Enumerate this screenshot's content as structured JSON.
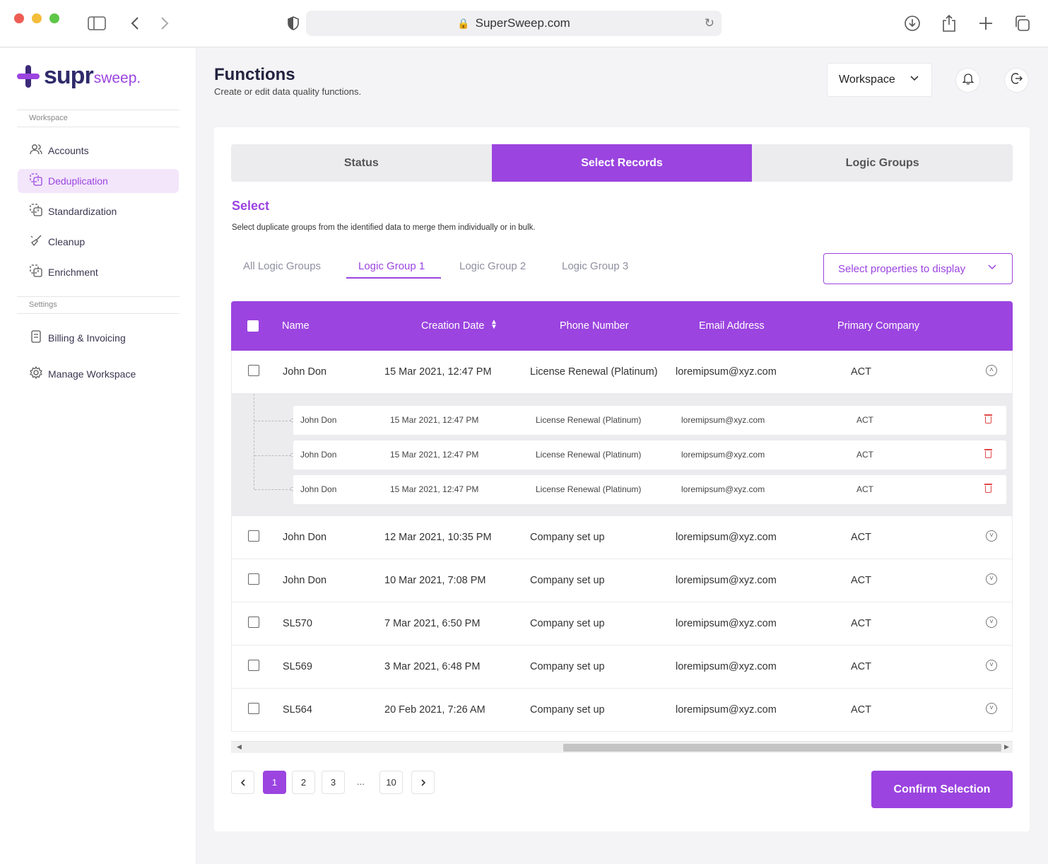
{
  "browser": {
    "url": "SuperSweep.com"
  },
  "brand": {
    "logo_main": "supr",
    "logo_accent": "sweep.",
    "accent_color": "#9b44e0"
  },
  "sidebar": {
    "section_workspace": "Workspace",
    "section_settings": "Settings",
    "items": [
      {
        "label": "Accounts",
        "icon": "users-icon"
      },
      {
        "label": "Deduplication",
        "icon": "duplicate-icon",
        "active": true
      },
      {
        "label": "Standardization",
        "icon": "standardize-icon"
      },
      {
        "label": "Cleanup",
        "icon": "broom-icon"
      },
      {
        "label": "Enrichment",
        "icon": "enrich-icon"
      }
    ],
    "settings_items": [
      {
        "label": "Billing & Invoicing",
        "icon": "invoice-icon"
      },
      {
        "label": "Manage Workspace",
        "icon": "gear-icon"
      }
    ]
  },
  "header": {
    "title": "Functions",
    "subtitle": "Create or edit data quality functions.",
    "workspace_select": "Workspace"
  },
  "tabs": [
    "Status",
    "Select Records",
    "Logic Groups"
  ],
  "select_section": {
    "title": "Select",
    "description": "Select duplicate groups from the identified data to merge them individually or in bulk."
  },
  "subtabs": [
    "All Logic Groups",
    "Logic Group 1",
    "Logic Group 2",
    "Logic Group 3"
  ],
  "props_button": "Select properties to display",
  "table": {
    "columns": [
      "Name",
      "Creation Date",
      "Phone Number",
      "Email Address",
      "Primary Company"
    ],
    "rows": [
      {
        "name": "John Don",
        "date": "15 Mar 2021, 12:47 PM",
        "phone": "License Renewal (Platinum)",
        "email": "loremipsum@xyz.com",
        "company": "ACT"
      },
      {
        "name": "John Don",
        "date": "12 Mar 2021, 10:35 PM",
        "phone": "Company set up",
        "email": "loremipsum@xyz.com",
        "company": "ACT"
      },
      {
        "name": "John Don",
        "date": "10 Mar 2021, 7:08 PM",
        "phone": "Company set up",
        "email": "loremipsum@xyz.com",
        "company": "ACT"
      },
      {
        "name": "SL570",
        "date": "7 Mar 2021, 6:50 PM",
        "phone": "Company set up",
        "email": "loremipsum@xyz.com",
        "company": "ACT"
      },
      {
        "name": "SL569",
        "date": "3 Mar 2021, 6:48 PM",
        "phone": "Company set up",
        "email": "loremipsum@xyz.com",
        "company": "ACT"
      },
      {
        "name": "SL564",
        "date": "20 Feb 2021, 7:26 AM",
        "phone": "Company set up",
        "email": "loremipsum@xyz.com",
        "company": "ACT"
      }
    ],
    "subrows": [
      {
        "name": "John Don",
        "date": "15 Mar 2021, 12:47 PM",
        "phone": "License Renewal (Platinum)",
        "email": "loremipsum@xyz.com",
        "company": "ACT"
      },
      {
        "name": "John Don",
        "date": "15 Mar 2021, 12:47 PM",
        "phone": "License Renewal (Platinum)",
        "email": "loremipsum@xyz.com",
        "company": "ACT"
      },
      {
        "name": "John Don",
        "date": "15 Mar 2021, 12:47 PM",
        "phone": "License Renewal (Platinum)",
        "email": "loremipsum@xyz.com",
        "company": "ACT"
      }
    ]
  },
  "pagination": {
    "pages": [
      "1",
      "2",
      "3",
      "10"
    ],
    "ellipsis": "...",
    "current": "1"
  },
  "confirm_button": "Confirm Selection"
}
